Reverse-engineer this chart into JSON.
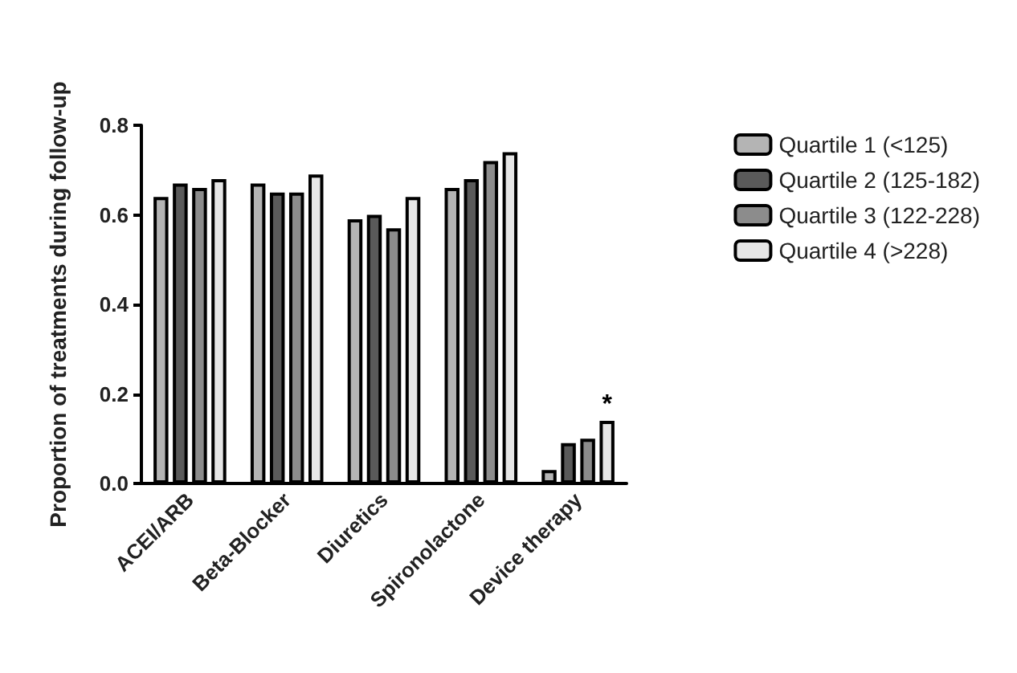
{
  "chart_data": {
    "type": "bar",
    "ylabel": "Proportion of treatments during follow-up",
    "categories": [
      "ACEI/ARB",
      "Beta-Blocker",
      "Diuretics",
      "Spironolactone",
      "Device therapy"
    ],
    "series": [
      {
        "name": "Quartile 1 (<125)",
        "color": "#b4b4b4",
        "values": [
          0.64,
          0.67,
          0.59,
          0.66,
          0.03
        ]
      },
      {
        "name": "Quartile 2 (125-182)",
        "color": "#5a5a5a",
        "values": [
          0.67,
          0.65,
          0.6,
          0.68,
          0.09
        ]
      },
      {
        "name": "Quartile 3 (122-228)",
        "color": "#8c8c8c",
        "values": [
          0.66,
          0.65,
          0.57,
          0.72,
          0.1
        ]
      },
      {
        "name": "Quartile 4 (>228)",
        "color": "#e6e6e6",
        "values": [
          0.68,
          0.69,
          0.64,
          0.74,
          0.14
        ]
      }
    ],
    "ylim": [
      0,
      0.8
    ],
    "yticks": [
      {
        "value": 0,
        "label": "0.0"
      },
      {
        "value": 0.2,
        "label": "0.2"
      },
      {
        "value": 0.4,
        "label": "0.4"
      },
      {
        "value": 0.6,
        "label": "0.6"
      },
      {
        "value": 0.8,
        "label": "0.8"
      }
    ],
    "annotations": [
      "*"
    ],
    "grid": false,
    "legend": "right"
  }
}
